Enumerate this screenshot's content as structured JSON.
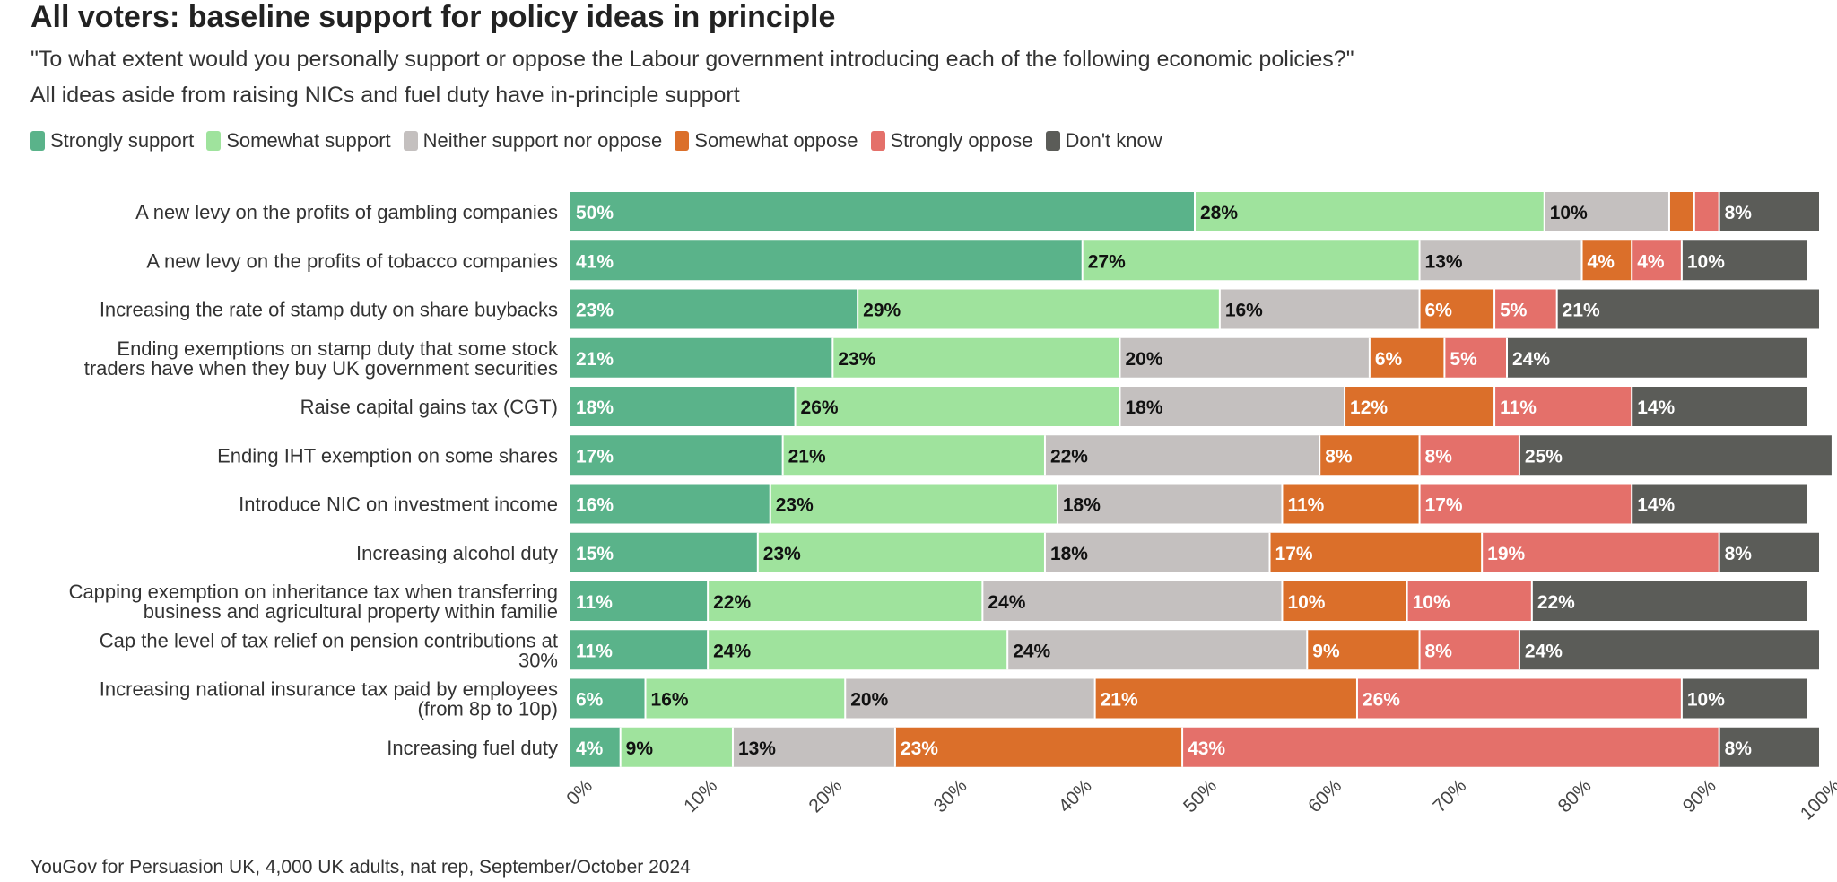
{
  "header": {
    "title": "All voters: baseline support for policy ideas in principle",
    "subtitle": "\"To what extent would you personally support or oppose the Labour government introducing each of the following economic policies?\"",
    "subtitle2": "All ideas aside from raising NICs and fuel duty have in-principle support"
  },
  "legend": {
    "items": [
      {
        "label": "Strongly support",
        "color": "#5ab38a"
      },
      {
        "label": "Somewhat support",
        "color": "#9fe39d"
      },
      {
        "label": "Neither support nor oppose",
        "color": "#c4c0bf"
      },
      {
        "label": "Somewhat oppose",
        "color": "#db6f2a"
      },
      {
        "label": "Strongly oppose",
        "color": "#e4706a"
      },
      {
        "label": "Don't know",
        "color": "#5b5c58"
      }
    ]
  },
  "caption": "YouGov for Persuasion UK, 4,000 UK adults, nat rep, September/October 2024",
  "chart_data": {
    "type": "bar",
    "orientation": "horizontal",
    "stacked": true,
    "xlim": [
      0,
      100
    ],
    "x_ticks": [
      "0%",
      "10%",
      "20%",
      "30%",
      "40%",
      "50%",
      "60%",
      "70%",
      "80%",
      "90%",
      "100%"
    ],
    "categories": [
      [
        "A new levy on the profits of gambling companies"
      ],
      [
        "A new levy on the profits of tobacco companies"
      ],
      [
        "Increasing the rate of stamp duty on share buybacks"
      ],
      [
        "Ending exemptions on stamp duty that some stock",
        "traders have when they buy UK government securities"
      ],
      [
        "Raise capital gains tax (CGT)"
      ],
      [
        "Ending IHT exemption on some shares"
      ],
      [
        "Introduce NIC on investment income"
      ],
      [
        "Increasing alcohol duty"
      ],
      [
        "Capping exemption on inheritance tax when transferring",
        "business and agricultural property within familie"
      ],
      [
        "Cap the level of tax relief on pension contributions at",
        "30%"
      ],
      [
        "Increasing national insurance tax paid by employees",
        "(from 8p to 10p)"
      ],
      [
        "Increasing fuel duty"
      ]
    ],
    "series": [
      {
        "name": "Strongly support",
        "color": "#5ab38a",
        "label_color": "#ffffff",
        "values": [
          50,
          41,
          23,
          21,
          18,
          17,
          16,
          15,
          11,
          11,
          6,
          4
        ],
        "labels": [
          "50%",
          "41%",
          "23%",
          "21%",
          "18%",
          "17%",
          "16%",
          "15%",
          "11%",
          "11%",
          "6%",
          "4%"
        ]
      },
      {
        "name": "Somewhat support",
        "color": "#9fe39d",
        "label_color": "#111111",
        "values": [
          28,
          27,
          29,
          23,
          26,
          21,
          23,
          23,
          22,
          24,
          16,
          9
        ],
        "labels": [
          "28%",
          "27%",
          "29%",
          "23%",
          "26%",
          "21%",
          "23%",
          "23%",
          "22%",
          "24%",
          "16%",
          "9%"
        ]
      },
      {
        "name": "Neither support nor oppose",
        "color": "#c4c0bf",
        "label_color": "#111111",
        "values": [
          10,
          13,
          16,
          20,
          18,
          22,
          18,
          18,
          24,
          24,
          20,
          13
        ],
        "labels": [
          "10%",
          "13%",
          "16%",
          "20%",
          "18%",
          "22%",
          "18%",
          "18%",
          "24%",
          "24%",
          "20%",
          "13%"
        ]
      },
      {
        "name": "Somewhat oppose",
        "color": "#db6f2a",
        "label_color": "#ffffff",
        "values": [
          2,
          4,
          6,
          6,
          12,
          8,
          11,
          17,
          10,
          9,
          21,
          23
        ],
        "labels": [
          "",
          "4%",
          "6%",
          "6%",
          "12%",
          "8%",
          "11%",
          "17%",
          "10%",
          "9%",
          "21%",
          "23%"
        ]
      },
      {
        "name": "Strongly oppose",
        "color": "#e4706a",
        "label_color": "#ffffff",
        "values": [
          2,
          4,
          5,
          5,
          11,
          8,
          17,
          19,
          10,
          8,
          26,
          43
        ],
        "labels": [
          "",
          "4%",
          "5%",
          "5%",
          "11%",
          "8%",
          "17%",
          "19%",
          "10%",
          "8%",
          "26%",
          "43%"
        ]
      },
      {
        "name": "Don't know",
        "color": "#5b5c58",
        "label_color": "#ffffff",
        "values": [
          8,
          10,
          21,
          24,
          14,
          25,
          14,
          8,
          22,
          24,
          10,
          8
        ],
        "labels": [
          "8%",
          "10%",
          "21%",
          "24%",
          "14%",
          "25%",
          "14%",
          "8%",
          "22%",
          "24%",
          "10%",
          "8%"
        ]
      }
    ]
  }
}
